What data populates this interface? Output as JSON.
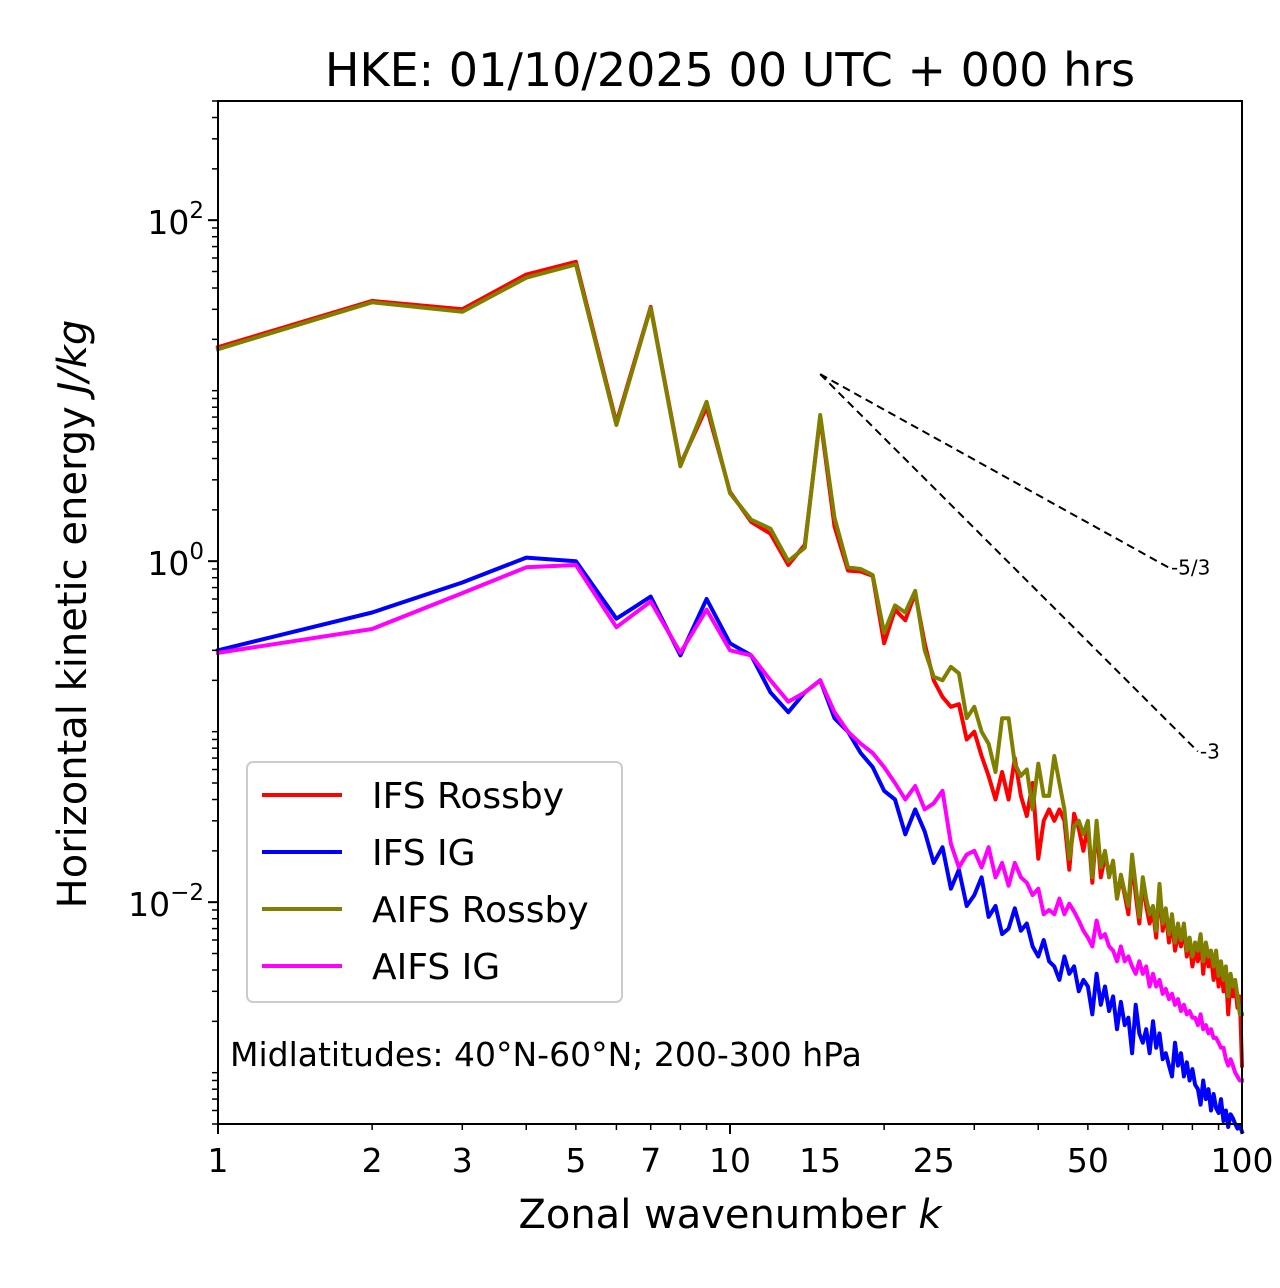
{
  "chart_data": {
    "type": "line",
    "title": "HKE: 01/10/2025 00 UTC + 000 hrs",
    "xlabel_main": "Zonal wavenumber ",
    "xlabel_var": "k",
    "ylabel_main": "Horizontal kinetic energy ",
    "ylabel_var": "J/kg",
    "xscale": "log",
    "yscale": "log",
    "xlim": [
      1,
      100
    ],
    "ylim": [
      0.0005,
      500
    ],
    "xticks": [
      1,
      2,
      3,
      5,
      7,
      10,
      15,
      25,
      50,
      100
    ],
    "xtick_labels": [
      "1",
      "2",
      "3",
      "5",
      "7",
      "10",
      "15",
      "25",
      "50",
      "100"
    ],
    "yticks": [
      0.01,
      1,
      100
    ],
    "ytick_labels": [
      {
        "base": "10",
        "exp": "−2"
      },
      {
        "base": "10",
        "exp": "0"
      },
      {
        "base": "10",
        "exp": "2"
      }
    ],
    "annotation": "Midlatitudes: 40°N-60°N; 200-300 hPa",
    "reference_lines": [
      {
        "label": "-5/3",
        "slope": -1.6667,
        "x0": 15,
        "y0": 12.5,
        "x1": 72
      },
      {
        "label": "-3",
        "slope": -3,
        "x0": 15,
        "y0": 12.5,
        "x1": 82
      }
    ],
    "legend": {
      "location": "lower-left"
    },
    "series": [
      {
        "name": "IFS Rossby",
        "color": "#ff0000",
        "x": [
          1,
          2,
          3,
          4,
          5,
          6,
          7,
          8,
          9,
          10,
          11,
          12,
          13,
          14,
          15,
          16,
          17,
          18,
          19,
          20,
          21,
          22,
          23,
          24,
          25,
          26,
          27,
          28,
          29,
          30,
          31,
          32,
          33,
          34,
          35,
          36,
          37,
          38,
          39,
          40,
          41,
          42,
          43,
          44,
          45,
          46,
          47,
          48,
          49,
          50,
          51,
          52,
          53,
          54,
          55,
          56,
          57,
          58,
          59,
          60,
          61,
          62,
          63,
          64,
          65,
          66,
          67,
          68,
          69,
          70,
          71,
          72,
          73,
          74,
          75,
          76,
          77,
          78,
          79,
          80,
          81,
          82,
          83,
          84,
          85,
          86,
          87,
          88,
          89,
          90,
          91,
          92,
          93,
          94,
          95,
          96,
          97,
          98,
          99,
          100
        ],
        "y": [
          18.0,
          33.6,
          30.0,
          48.0,
          57.0,
          6.5,
          31.0,
          3.7,
          8.0,
          2.55,
          1.7,
          1.45,
          0.95,
          1.25,
          7.0,
          1.6,
          0.88,
          0.87,
          0.82,
          0.33,
          0.52,
          0.45,
          0.65,
          0.33,
          0.2,
          0.16,
          0.14,
          0.145,
          0.09,
          0.1,
          0.072,
          0.055,
          0.04,
          0.058,
          0.04,
          0.07,
          0.042,
          0.032,
          0.05,
          0.018,
          0.03,
          0.035,
          0.03,
          0.035,
          0.03,
          0.0155,
          0.033,
          0.027,
          0.02,
          0.028,
          0.013,
          0.028,
          0.014,
          0.0185,
          0.015,
          0.017,
          0.0105,
          0.014,
          0.011,
          0.0085,
          0.0175,
          0.011,
          0.0075,
          0.013,
          0.0095,
          0.0075,
          0.0088,
          0.0062,
          0.012,
          0.0068,
          0.0085,
          0.0058,
          0.0078,
          0.0052,
          0.0065,
          0.0055,
          0.007,
          0.0048,
          0.0058,
          0.0042,
          0.0052,
          0.0045,
          0.0062,
          0.0038,
          0.0055,
          0.0042,
          0.0048,
          0.0035,
          0.0046,
          0.0032,
          0.0042,
          0.003,
          0.0038,
          0.0022,
          0.0035,
          0.0028,
          0.0032,
          0.0024,
          0.0028,
          0.0011
        ]
      },
      {
        "name": "IFS IG",
        "color": "#0000ff",
        "x": [
          1,
          2,
          3,
          4,
          5,
          6,
          7,
          8,
          9,
          10,
          11,
          12,
          13,
          14,
          15,
          16,
          17,
          18,
          19,
          20,
          21,
          22,
          23,
          24,
          25,
          26,
          27,
          28,
          29,
          30,
          31,
          32,
          33,
          34,
          35,
          36,
          37,
          38,
          39,
          40,
          41,
          42,
          43,
          44,
          45,
          46,
          47,
          48,
          49,
          50,
          51,
          52,
          53,
          54,
          55,
          56,
          57,
          58,
          59,
          60,
          61,
          62,
          63,
          64,
          65,
          66,
          67,
          68,
          69,
          70,
          71,
          72,
          73,
          74,
          75,
          76,
          77,
          78,
          79,
          80,
          81,
          82,
          83,
          84,
          85,
          86,
          87,
          88,
          89,
          90,
          91,
          92,
          93,
          94,
          95,
          96,
          97,
          98,
          99,
          100
        ],
        "y": [
          0.3,
          0.5,
          0.75,
          1.05,
          1.0,
          0.46,
          0.62,
          0.28,
          0.6,
          0.33,
          0.28,
          0.17,
          0.13,
          0.17,
          0.2,
          0.12,
          0.1,
          0.075,
          0.062,
          0.045,
          0.04,
          0.025,
          0.035,
          0.026,
          0.017,
          0.021,
          0.012,
          0.0155,
          0.0095,
          0.011,
          0.014,
          0.0082,
          0.0095,
          0.0065,
          0.007,
          0.0092,
          0.0068,
          0.0075,
          0.0055,
          0.0048,
          0.006,
          0.0045,
          0.0042,
          0.0035,
          0.0048,
          0.0038,
          0.0042,
          0.003,
          0.0035,
          0.0032,
          0.0022,
          0.0038,
          0.0025,
          0.0032,
          0.0023,
          0.0028,
          0.0018,
          0.0026,
          0.0019,
          0.0021,
          0.0013,
          0.0025,
          0.0017,
          0.0015,
          0.0018,
          0.0013,
          0.002,
          0.0014,
          0.0017,
          0.0012,
          0.0013,
          0.0011,
          0.00095,
          0.0015,
          0.0011,
          0.0013,
          0.00095,
          0.00115,
          0.0009,
          0.00105,
          0.00085,
          0.0008,
          0.00065,
          0.0009,
          0.0007,
          0.0008,
          0.0006,
          0.00075,
          0.00062,
          0.00058,
          0.0007,
          0.00052,
          0.0006,
          0.00048,
          0.00057,
          0.00054,
          0.0005,
          0.00047,
          0.00049,
          0.00045
        ]
      },
      {
        "name": "AIFS Rossby",
        "color": "#808000",
        "x": [
          1,
          2,
          3,
          4,
          5,
          6,
          7,
          8,
          9,
          10,
          11,
          12,
          13,
          14,
          15,
          16,
          17,
          18,
          19,
          20,
          21,
          22,
          23,
          24,
          25,
          26,
          27,
          28,
          29,
          30,
          31,
          32,
          33,
          34,
          35,
          36,
          37,
          38,
          39,
          40,
          41,
          42,
          43,
          44,
          45,
          46,
          47,
          48,
          49,
          50,
          51,
          52,
          53,
          54,
          55,
          56,
          57,
          58,
          59,
          60,
          61,
          62,
          63,
          64,
          65,
          66,
          67,
          68,
          69,
          70,
          71,
          72,
          73,
          74,
          75,
          76,
          77,
          78,
          79,
          80,
          81,
          82,
          83,
          84,
          85,
          86,
          87,
          88,
          89,
          90,
          91,
          92,
          93,
          94,
          95,
          96,
          97,
          98,
          99,
          100
        ],
        "y": [
          17.5,
          33.0,
          29.0,
          46.0,
          55.0,
          6.3,
          30.5,
          3.6,
          8.6,
          2.5,
          1.75,
          1.55,
          1.0,
          1.2,
          7.2,
          1.8,
          0.92,
          0.9,
          0.83,
          0.38,
          0.55,
          0.5,
          0.67,
          0.3,
          0.21,
          0.2,
          0.24,
          0.22,
          0.12,
          0.14,
          0.1,
          0.085,
          0.058,
          0.12,
          0.12,
          0.065,
          0.055,
          0.06,
          0.035,
          0.065,
          0.042,
          0.042,
          0.072,
          0.05,
          0.035,
          0.018,
          0.028,
          0.03,
          0.025,
          0.03,
          0.014,
          0.03,
          0.016,
          0.02,
          0.014,
          0.0175,
          0.0105,
          0.0145,
          0.0115,
          0.0095,
          0.019,
          0.0125,
          0.0082,
          0.014,
          0.0105,
          0.0085,
          0.0095,
          0.0068,
          0.0128,
          0.0075,
          0.0092,
          0.0065,
          0.0085,
          0.0058,
          0.0075,
          0.006,
          0.0075,
          0.0052,
          0.0062,
          0.0048,
          0.0058,
          0.0052,
          0.0065,
          0.0045,
          0.0058,
          0.0048,
          0.0052,
          0.0042,
          0.0052,
          0.0037,
          0.0045,
          0.0035,
          0.0042,
          0.0028,
          0.0038,
          0.0032,
          0.0035,
          0.0028,
          0.0022,
          0.0022
        ]
      },
      {
        "name": "AIFS IG",
        "color": "#ff00ff",
        "x": [
          1,
          2,
          3,
          4,
          5,
          6,
          7,
          8,
          9,
          10,
          11,
          12,
          13,
          14,
          15,
          16,
          17,
          18,
          19,
          20,
          21,
          22,
          23,
          24,
          25,
          26,
          27,
          28,
          29,
          30,
          31,
          32,
          33,
          34,
          35,
          36,
          37,
          38,
          39,
          40,
          41,
          42,
          43,
          44,
          45,
          46,
          47,
          48,
          49,
          50,
          51,
          52,
          53,
          54,
          55,
          56,
          57,
          58,
          59,
          60,
          61,
          62,
          63,
          64,
          65,
          66,
          67,
          68,
          69,
          70,
          71,
          72,
          73,
          74,
          75,
          76,
          77,
          78,
          79,
          80,
          81,
          82,
          83,
          84,
          85,
          86,
          87,
          88,
          89,
          90,
          91,
          92,
          93,
          94,
          95,
          96,
          97,
          98,
          99,
          100
        ],
        "y": [
          0.29,
          0.4,
          0.65,
          0.92,
          0.95,
          0.41,
          0.58,
          0.29,
          0.52,
          0.3,
          0.28,
          0.2,
          0.15,
          0.17,
          0.2,
          0.13,
          0.1,
          0.085,
          0.075,
          0.062,
          0.05,
          0.04,
          0.048,
          0.035,
          0.038,
          0.045,
          0.022,
          0.016,
          0.019,
          0.02,
          0.016,
          0.021,
          0.014,
          0.017,
          0.0125,
          0.017,
          0.014,
          0.013,
          0.011,
          0.012,
          0.0085,
          0.009,
          0.0085,
          0.0105,
          0.0085,
          0.0098,
          0.0088,
          0.0078,
          0.0068,
          0.0062,
          0.0055,
          0.0078,
          0.0062,
          0.0065,
          0.0055,
          0.0052,
          0.0045,
          0.0055,
          0.0045,
          0.0048,
          0.0042,
          0.0038,
          0.0045,
          0.0038,
          0.0042,
          0.0032,
          0.0038,
          0.0032,
          0.0035,
          0.0029,
          0.0031,
          0.0027,
          0.0029,
          0.0025,
          0.0027,
          0.0023,
          0.0025,
          0.0022,
          0.0023,
          0.0021,
          0.0021,
          0.0019,
          0.0022,
          0.0018,
          0.0019,
          0.0017,
          0.0018,
          0.0016,
          0.0016,
          0.0015,
          0.0014,
          0.0014,
          0.0012,
          0.0011,
          0.0012,
          0.0011,
          0.001,
          0.00095,
          0.0009,
          0.0009
        ]
      }
    ]
  }
}
